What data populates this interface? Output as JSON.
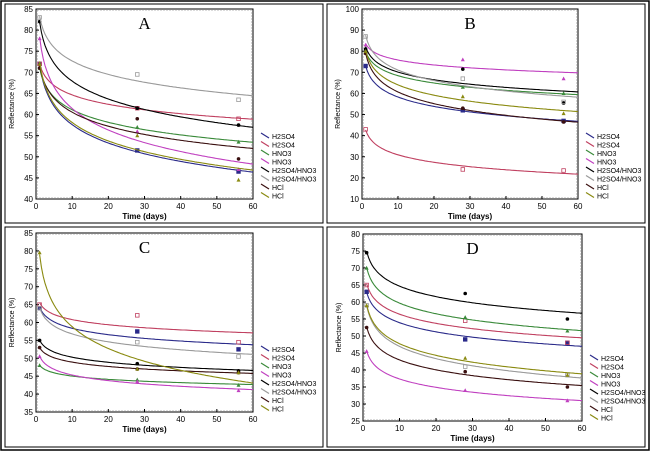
{
  "chart_data": [
    {
      "type": "scatter",
      "title": "A",
      "xlabel": "Time (days)",
      "ylabel": "Reflectance (%)",
      "xlim": [
        0,
        60
      ],
      "xticks": [
        0,
        10,
        20,
        30,
        40,
        50,
        60
      ],
      "ylim": [
        40,
        85
      ],
      "yticks": [
        40,
        45,
        50,
        55,
        60,
        65,
        70,
        75,
        80,
        85
      ],
      "legend_position": "right-bottom",
      "x": [
        1,
        28,
        56
      ],
      "series": [
        {
          "name": "H2SO4",
          "color": "#2b2b8a",
          "values": [
            72,
            51.5,
            46.5
          ]
        },
        {
          "name": "H2SO4",
          "color": "#c04060",
          "values": [
            72,
            61.5,
            59
          ]
        },
        {
          "name": "HNO3",
          "color": "#3a8a3a",
          "values": [
            71,
            57,
            53.5
          ]
        },
        {
          "name": "HNO3",
          "color": "#c040c0",
          "values": [
            78,
            56,
            47
          ]
        },
        {
          "name": "H2SO4/HNO3",
          "color": "#000000",
          "values": [
            82,
            61.5,
            57.5
          ]
        },
        {
          "name": "H2SO4/HNO3",
          "color": "#9a9a9a",
          "values": [
            83,
            69.5,
            63.5
          ]
        },
        {
          "name": "HCl",
          "color": "#3a1010",
          "values": [
            71,
            59,
            49.5
          ]
        },
        {
          "name": "HCl",
          "color": "#8a8a10",
          "values": [
            72,
            55,
            44.5
          ]
        }
      ]
    },
    {
      "type": "scatter",
      "title": "B",
      "xlabel": "Time (days)",
      "ylabel": "Reflectance (%)",
      "xlim": [
        0,
        60
      ],
      "xticks": [
        0,
        10,
        20,
        30,
        40,
        50,
        60
      ],
      "ylim": [
        10,
        100
      ],
      "yticks": [
        10,
        20,
        30,
        40,
        50,
        60,
        70,
        80,
        90,
        100
      ],
      "legend_position": "right-bottom",
      "x": [
        1,
        28,
        56
      ],
      "series": [
        {
          "name": "H2SO4",
          "color": "#2b2b8a",
          "values": [
            73,
            52,
            47
          ]
        },
        {
          "name": "H2SO4",
          "color": "#c04060",
          "values": [
            43,
            24,
            23.5
          ]
        },
        {
          "name": "HNO3",
          "color": "#3a8a3a",
          "values": [
            80,
            63,
            60
          ]
        },
        {
          "name": "HNO3",
          "color": "#c040c0",
          "values": [
            83,
            76,
            67
          ]
        },
        {
          "name": "H2SO4/HNO3",
          "color": "#000000",
          "values": [
            81,
            71.5,
            55.5
          ]
        },
        {
          "name": "H2SO4/HNO3",
          "color": "#9a9a9a",
          "values": [
            87,
            67,
            56
          ]
        },
        {
          "name": "HCl",
          "color": "#3a1010",
          "values": [
            79,
            53,
            46.5
          ]
        },
        {
          "name": "HCl",
          "color": "#8a8a10",
          "values": [
            80,
            58.5,
            50.5
          ]
        }
      ]
    },
    {
      "type": "scatter",
      "title": "C",
      "xlabel": "Time  (days)",
      "ylabel": "Reflectance (%)",
      "xlim": [
        0,
        60
      ],
      "xticks": [
        0,
        10,
        20,
        30,
        40,
        50,
        60
      ],
      "ylim": [
        35,
        85
      ],
      "yticks": [
        35,
        40,
        45,
        50,
        55,
        60,
        65,
        70,
        75,
        80,
        85
      ],
      "legend_position": "right-bottom",
      "x": [
        1,
        28,
        56
      ],
      "series": [
        {
          "name": "H2SO4",
          "color": "#2b2b8a",
          "values": [
            64,
            57.5,
            52.5
          ]
        },
        {
          "name": "H2SO4",
          "color": "#c04060",
          "values": [
            65,
            62,
            54.5
          ]
        },
        {
          "name": "HNO3",
          "color": "#3a8a3a",
          "values": [
            48,
            44,
            42.5
          ]
        },
        {
          "name": "HNO3",
          "color": "#c040c0",
          "values": [
            50.5,
            43.5,
            41
          ]
        },
        {
          "name": "H2SO4/HNO3",
          "color": "#000000",
          "values": [
            55,
            48.5,
            46.5
          ]
        },
        {
          "name": "H2SO4/HNO3",
          "color": "#9a9a9a",
          "values": [
            64,
            54.5,
            50.5
          ]
        },
        {
          "name": "HCl",
          "color": "#3a1010",
          "values": [
            53,
            47,
            46
          ]
        },
        {
          "name": "HCl",
          "color": "#8a8a10",
          "values": [
            79.5,
            47,
            46
          ]
        }
      ]
    },
    {
      "type": "scatter",
      "title": "D",
      "xlabel": "Time  (days)",
      "ylabel": "Reflectance (%)",
      "xlim": [
        0,
        60
      ],
      "xticks": [
        0,
        10,
        20,
        30,
        40,
        50,
        60
      ],
      "ylim": [
        25,
        80
      ],
      "yticks": [
        25,
        30,
        35,
        40,
        45,
        50,
        55,
        60,
        65,
        70,
        75,
        80
      ],
      "legend_position": "right-bottom",
      "x": [
        1,
        28,
        56
      ],
      "series": [
        {
          "name": "H2SO4",
          "color": "#2b2b8a",
          "values": [
            63,
            49,
            48
          ]
        },
        {
          "name": "H2SO4",
          "color": "#c04060",
          "values": [
            65,
            54.5,
            48
          ]
        },
        {
          "name": "HNO3",
          "color": "#3a8a3a",
          "values": [
            70,
            55.5,
            51.5
          ]
        },
        {
          "name": "HNO3",
          "color": "#c040c0",
          "values": [
            45.5,
            34,
            31
          ]
        },
        {
          "name": "H2SO4/HNO3",
          "color": "#000000",
          "values": [
            74.5,
            62.5,
            55
          ]
        },
        {
          "name": "H2SO4/HNO3",
          "color": "#9a9a9a",
          "values": [
            59,
            41,
            38.5
          ]
        },
        {
          "name": "HCl",
          "color": "#3a1010",
          "values": [
            52.5,
            39.5,
            35
          ]
        },
        {
          "name": "HCl",
          "color": "#8a8a10",
          "values": [
            59,
            43.5,
            38.5
          ]
        }
      ]
    }
  ]
}
